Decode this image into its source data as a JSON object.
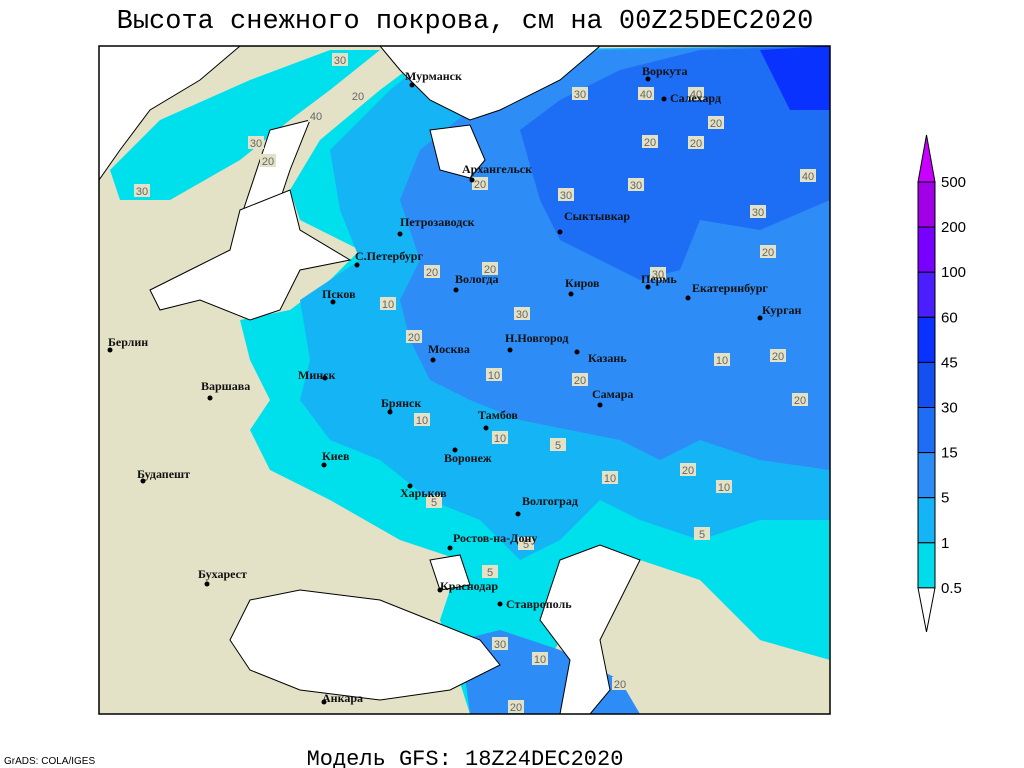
{
  "title": "Высота снежного покрова, см на 00Z25DEC2020",
  "footer": "Модель GFS: 18Z24DEC2020",
  "credit": "GrADS: COLA/IGES",
  "cities": [
    "Мурманск",
    "Воркута",
    "Салехард",
    "Архангельск",
    "Петрозаводск",
    "Сыктывкар",
    "С.Петербург",
    "Вологда",
    "Киров",
    "Пермь",
    "Екатеринбург",
    "Псков",
    "Курган",
    "Берлин",
    "Н.Новгород",
    "Москва",
    "Казань",
    "Варшава",
    "Минск",
    "Самара",
    "Брянск",
    "Тамбов",
    "Воронеж",
    "Киев",
    "Будапешт",
    "Харьков",
    "Волгоград",
    "Ростов-на-Дону",
    "Бухарест",
    "Краснодар",
    "Ставрополь",
    "Анкара"
  ],
  "contour_labels": [
    "30",
    "20",
    "40",
    "30",
    "20",
    "30",
    "20",
    "30",
    "30",
    "30",
    "40",
    "40",
    "20",
    "20",
    "20",
    "40",
    "30",
    "20",
    "20",
    "20",
    "30",
    "10",
    "30",
    "20",
    "10",
    "20",
    "10",
    "20",
    "10",
    "10",
    "5",
    "20",
    "20",
    "10",
    "10",
    "5",
    "5",
    "5",
    "5",
    "30",
    "10",
    "20",
    "20"
  ],
  "colorbar": {
    "top_color": "#c800ff",
    "bottom_color": "#ffffff",
    "levels": [
      {
        "label": "500",
        "color": "#a000e6"
      },
      {
        "label": "200",
        "color": "#7800ff"
      },
      {
        "label": "100",
        "color": "#4b1eff"
      },
      {
        "label": "60",
        "color": "#0a32ff"
      },
      {
        "label": "45",
        "color": "#1450f0"
      },
      {
        "label": "30",
        "color": "#1e6ef5"
      },
      {
        "label": "15",
        "color": "#2d8cf5"
      },
      {
        "label": "5",
        "color": "#14b4f5"
      },
      {
        "label": "1",
        "color": "#00dcec"
      },
      {
        "label": "0.5",
        "color": "#8cf5f5"
      }
    ]
  }
}
